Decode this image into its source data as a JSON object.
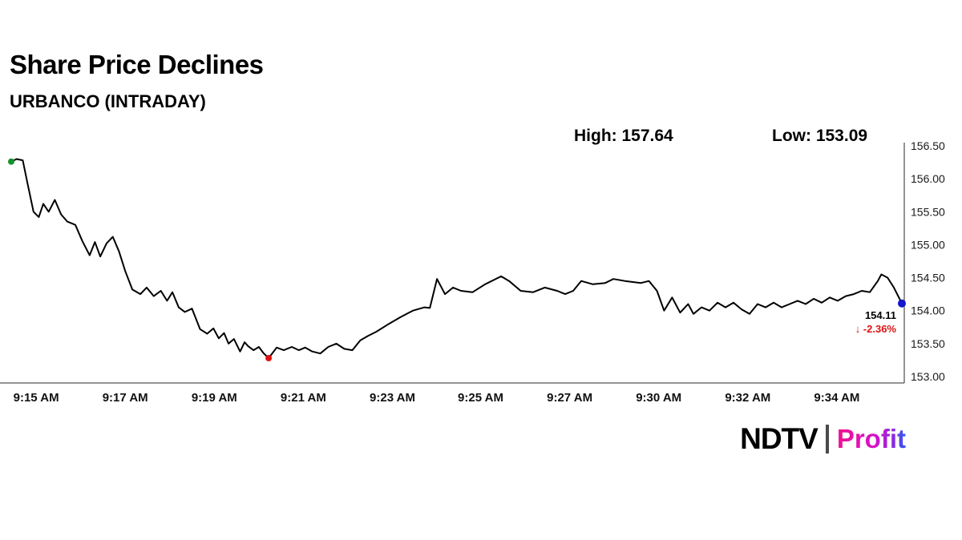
{
  "header": {
    "title": "Share Price Declines",
    "subtitle": "URBANCO (INTRADAY)"
  },
  "stats": {
    "high": "High: 157.64",
    "low": "Low: 153.09"
  },
  "chart_data": {
    "type": "line",
    "title": "URBANCO intraday share price",
    "ylim": [
      153.0,
      156.5
    ],
    "line_color": "#000000",
    "axis_color": "#2a2a2a",
    "y_ticks": [
      "156.50",
      "156.00",
      "155.50",
      "155.00",
      "154.50",
      "154.00",
      "153.50",
      "153.00"
    ],
    "x_ticks": [
      {
        "label": "9:15 AM",
        "pos": 0.028
      },
      {
        "label": "9:17 AM",
        "pos": 0.128
      },
      {
        "label": "9:19 AM",
        "pos": 0.228
      },
      {
        "label": "9:21 AM",
        "pos": 0.328
      },
      {
        "label": "9:23 AM",
        "pos": 0.428
      },
      {
        "label": "9:25 AM",
        "pos": 0.527
      },
      {
        "label": "9:27 AM",
        "pos": 0.627
      },
      {
        "label": "9:30 AM",
        "pos": 0.727
      },
      {
        "label": "9:32 AM",
        "pos": 0.827
      },
      {
        "label": "9:34 AM",
        "pos": 0.927
      }
    ],
    "markers": [
      {
        "name": "start-marker-dot",
        "pos": 0.0,
        "price": 156.26,
        "color": "#15922e",
        "r": 4
      },
      {
        "name": "low-marker-dot",
        "pos": 0.289,
        "price": 153.28,
        "color": "#e01010",
        "r": 4
      },
      {
        "name": "end-marker-dot",
        "pos": 1.0,
        "price": 154.11,
        "color": "#1515cf",
        "r": 5
      }
    ],
    "annotation": {
      "last_price": "154.11",
      "change": "↓ -2.36%"
    },
    "points": [
      [
        0.0,
        156.26
      ],
      [
        0.006,
        156.3
      ],
      [
        0.013,
        156.28
      ],
      [
        0.018,
        155.95
      ],
      [
        0.025,
        155.5
      ],
      [
        0.031,
        155.42
      ],
      [
        0.036,
        155.62
      ],
      [
        0.042,
        155.5
      ],
      [
        0.049,
        155.68
      ],
      [
        0.056,
        155.46
      ],
      [
        0.063,
        155.35
      ],
      [
        0.072,
        155.3
      ],
      [
        0.08,
        155.05
      ],
      [
        0.088,
        154.84
      ],
      [
        0.094,
        155.04
      ],
      [
        0.1,
        154.82
      ],
      [
        0.107,
        155.02
      ],
      [
        0.114,
        155.12
      ],
      [
        0.121,
        154.9
      ],
      [
        0.128,
        154.6
      ],
      [
        0.136,
        154.32
      ],
      [
        0.145,
        154.25
      ],
      [
        0.152,
        154.35
      ],
      [
        0.16,
        154.22
      ],
      [
        0.168,
        154.3
      ],
      [
        0.175,
        154.15
      ],
      [
        0.181,
        154.28
      ],
      [
        0.188,
        154.05
      ],
      [
        0.195,
        153.98
      ],
      [
        0.203,
        154.03
      ],
      [
        0.212,
        153.72
      ],
      [
        0.22,
        153.65
      ],
      [
        0.227,
        153.73
      ],
      [
        0.233,
        153.58
      ],
      [
        0.239,
        153.66
      ],
      [
        0.244,
        153.5
      ],
      [
        0.25,
        153.57
      ],
      [
        0.257,
        153.38
      ],
      [
        0.262,
        153.52
      ],
      [
        0.266,
        153.46
      ],
      [
        0.272,
        153.4
      ],
      [
        0.278,
        153.45
      ],
      [
        0.283,
        153.36
      ],
      [
        0.289,
        153.28
      ],
      [
        0.298,
        153.44
      ],
      [
        0.306,
        153.4
      ],
      [
        0.315,
        153.45
      ],
      [
        0.323,
        153.4
      ],
      [
        0.33,
        153.44
      ],
      [
        0.338,
        153.38
      ],
      [
        0.347,
        153.35
      ],
      [
        0.356,
        153.45
      ],
      [
        0.365,
        153.5
      ],
      [
        0.374,
        153.42
      ],
      [
        0.383,
        153.4
      ],
      [
        0.392,
        153.55
      ],
      [
        0.401,
        153.62
      ],
      [
        0.41,
        153.68
      ],
      [
        0.424,
        153.8
      ],
      [
        0.437,
        153.9
      ],
      [
        0.451,
        154.0
      ],
      [
        0.464,
        154.05
      ],
      [
        0.47,
        154.04
      ],
      [
        0.478,
        154.48
      ],
      [
        0.487,
        154.25
      ],
      [
        0.496,
        154.35
      ],
      [
        0.505,
        154.3
      ],
      [
        0.518,
        154.28
      ],
      [
        0.532,
        154.4
      ],
      [
        0.55,
        154.52
      ],
      [
        0.559,
        154.45
      ],
      [
        0.572,
        154.3
      ],
      [
        0.586,
        154.28
      ],
      [
        0.599,
        154.35
      ],
      [
        0.613,
        154.3
      ],
      [
        0.622,
        154.25
      ],
      [
        0.631,
        154.3
      ],
      [
        0.64,
        154.45
      ],
      [
        0.653,
        154.4
      ],
      [
        0.667,
        154.42
      ],
      [
        0.676,
        154.48
      ],
      [
        0.689,
        154.45
      ],
      [
        0.707,
        154.42
      ],
      [
        0.716,
        154.45
      ],
      [
        0.725,
        154.3
      ],
      [
        0.733,
        154.0
      ],
      [
        0.742,
        154.2
      ],
      [
        0.751,
        153.97
      ],
      [
        0.76,
        154.1
      ],
      [
        0.766,
        153.95
      ],
      [
        0.775,
        154.05
      ],
      [
        0.784,
        154.0
      ],
      [
        0.793,
        154.12
      ],
      [
        0.802,
        154.05
      ],
      [
        0.811,
        154.12
      ],
      [
        0.82,
        154.02
      ],
      [
        0.829,
        153.95
      ],
      [
        0.838,
        154.1
      ],
      [
        0.847,
        154.05
      ],
      [
        0.856,
        154.12
      ],
      [
        0.865,
        154.05
      ],
      [
        0.874,
        154.1
      ],
      [
        0.883,
        154.15
      ],
      [
        0.892,
        154.1
      ],
      [
        0.901,
        154.18
      ],
      [
        0.91,
        154.12
      ],
      [
        0.919,
        154.2
      ],
      [
        0.928,
        154.15
      ],
      [
        0.937,
        154.22
      ],
      [
        0.946,
        154.25
      ],
      [
        0.955,
        154.3
      ],
      [
        0.964,
        154.28
      ],
      [
        0.973,
        154.45
      ],
      [
        0.977,
        154.55
      ],
      [
        0.984,
        154.5
      ],
      [
        0.991,
        154.35
      ],
      [
        1.0,
        154.11
      ]
    ]
  },
  "footer": {
    "ndtv": "NDTV",
    "separator": "|",
    "profit": "Profit"
  }
}
